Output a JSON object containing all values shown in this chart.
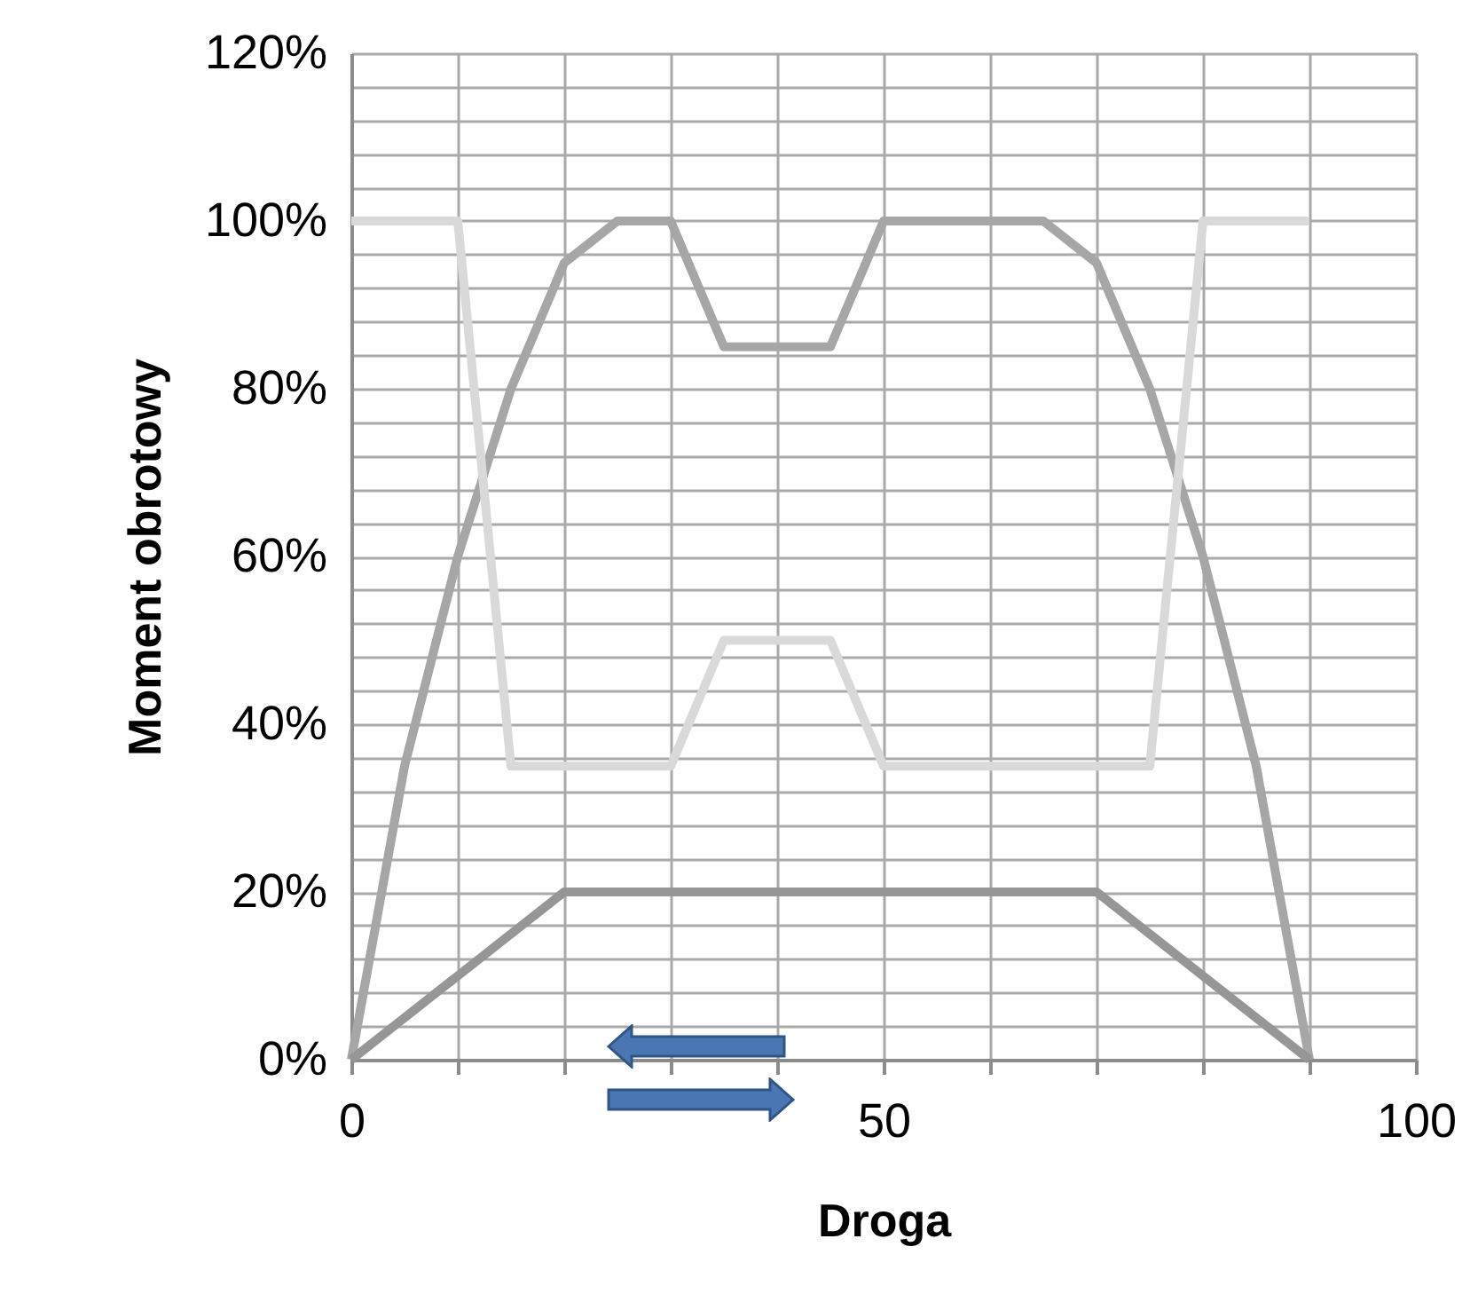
{
  "chart_data": {
    "type": "line",
    "xlabel": "Droga",
    "ylabel": "Moment obrotowy",
    "xlim": [
      0,
      100
    ],
    "ylim": [
      0,
      120
    ],
    "xticks": [
      0,
      {
        "value": 10,
        "label": null
      },
      {
        "value": 20,
        "label": null
      },
      {
        "value": 30,
        "label": null
      },
      {
        "value": 40,
        "label": null
      },
      50,
      {
        "value": 60,
        "label": null
      },
      {
        "value": 70,
        "label": null
      },
      {
        "value": 80,
        "label": null
      },
      {
        "value": 90,
        "label": null
      },
      100
    ],
    "yticks": [
      {
        "value": 0,
        "label": "0%"
      },
      {
        "value": 4,
        "label": null
      },
      {
        "value": 8,
        "label": null
      },
      {
        "value": 12,
        "label": null
      },
      {
        "value": 16,
        "label": null
      },
      {
        "value": 20,
        "label": "20%"
      },
      {
        "value": 24,
        "label": null
      },
      {
        "value": 28,
        "label": null
      },
      {
        "value": 32,
        "label": null
      },
      {
        "value": 36,
        "label": null
      },
      {
        "value": 40,
        "label": "40%"
      },
      {
        "value": 44,
        "label": null
      },
      {
        "value": 48,
        "label": null
      },
      {
        "value": 52,
        "label": null
      },
      {
        "value": 56,
        "label": null
      },
      {
        "value": 60,
        "label": "60%"
      },
      {
        "value": 64,
        "label": null
      },
      {
        "value": 68,
        "label": null
      },
      {
        "value": 72,
        "label": null
      },
      {
        "value": 76,
        "label": null
      },
      {
        "value": 80,
        "label": "80%"
      },
      {
        "value": 84,
        "label": null
      },
      {
        "value": 88,
        "label": null
      },
      {
        "value": 92,
        "label": null
      },
      {
        "value": 96,
        "label": null
      },
      {
        "value": 100,
        "label": "100%"
      },
      {
        "value": 104,
        "label": null
      },
      {
        "value": 108,
        "label": null
      },
      {
        "value": 112,
        "label": null
      },
      {
        "value": 116,
        "label": null
      },
      {
        "value": 120,
        "label": "120%"
      }
    ],
    "grid": true,
    "marker": "none",
    "line_style": "solid",
    "series": [
      {
        "color": "#a6a6a6",
        "x": [
          0,
          5,
          10,
          15,
          20,
          25,
          30,
          35,
          45,
          50,
          65,
          70,
          75,
          80,
          85,
          90
        ],
        "values": [
          0,
          35,
          60,
          80,
          95,
          100,
          100,
          85,
          85,
          100,
          100,
          95,
          80,
          60,
          35,
          0
        ]
      },
      {
        "color": "#d9d9d9",
        "x": [
          0,
          10,
          15,
          30,
          35,
          45,
          50,
          75,
          80,
          90
        ],
        "values": [
          100,
          100,
          35,
          35,
          50,
          50,
          35,
          35,
          100,
          100
        ]
      },
      {
        "color": "#969696",
        "x": [
          0,
          20,
          70,
          90
        ],
        "values": [
          0,
          20,
          20,
          0
        ]
      }
    ]
  }
}
